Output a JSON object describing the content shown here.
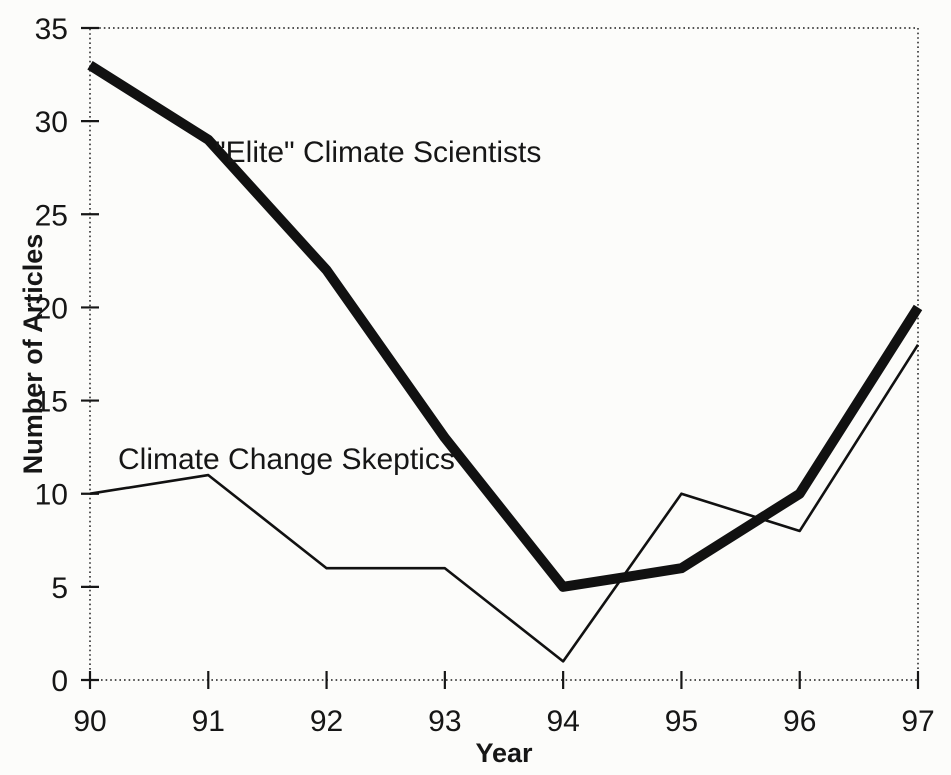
{
  "figure": {
    "background_color": "#fcfcfa",
    "ink_color": "#161616"
  },
  "chart_data": {
    "type": "line",
    "title": "",
    "xlabel": "Year",
    "ylabel": "Number of Articles",
    "x": [
      90,
      91,
      92,
      93,
      94,
      95,
      96,
      97
    ],
    "x_tick_labels": [
      "90",
      "91",
      "92",
      "93",
      "94",
      "95",
      "96",
      "97"
    ],
    "y_ticks": [
      0,
      5,
      10,
      15,
      20,
      25,
      30,
      35
    ],
    "xlim": [
      90,
      97
    ],
    "ylim": [
      0,
      35
    ],
    "grid": false,
    "frame_style": "dotted-box",
    "legend_position": "inline-annotations",
    "series": [
      {
        "name": "\"Elite\" Climate Scientists",
        "values": [
          33,
          29,
          22,
          13,
          5,
          6,
          10,
          20
        ],
        "style": "thick",
        "color": "#111111"
      },
      {
        "name": "Climate Change Skeptics",
        "values": [
          10,
          11,
          6,
          6,
          1,
          10,
          8,
          18
        ],
        "style": "thin",
        "color": "#111111"
      }
    ]
  }
}
